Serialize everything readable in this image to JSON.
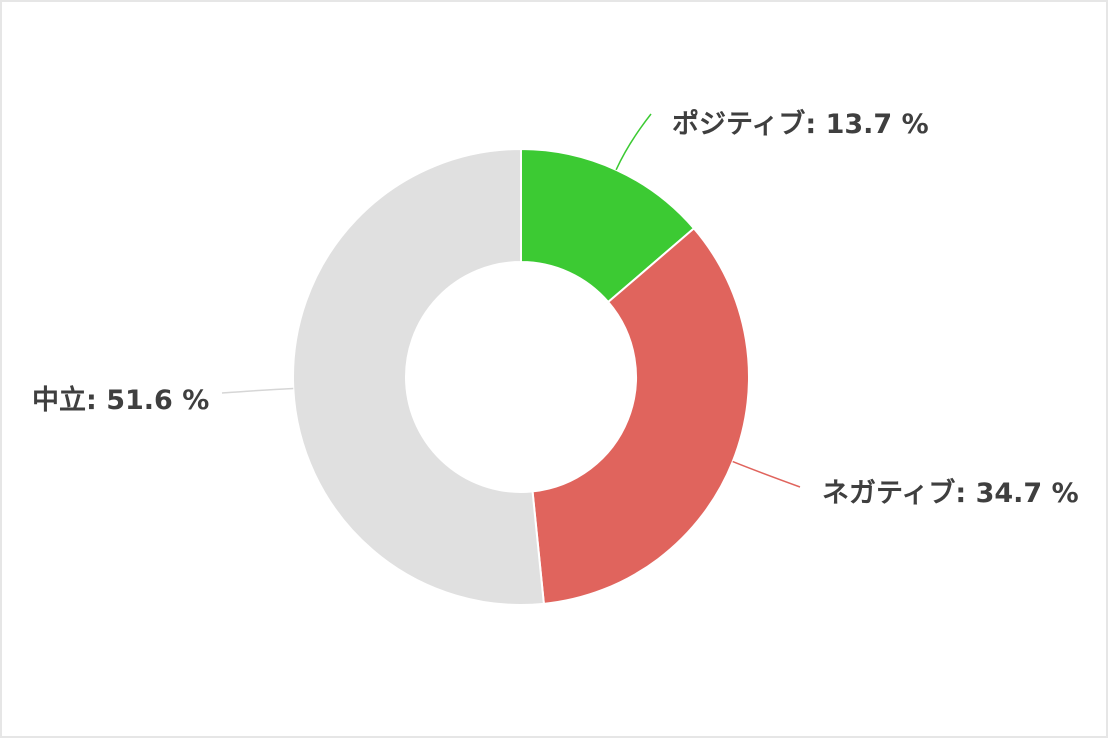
{
  "chart_data": {
    "type": "pie",
    "variant": "donut",
    "unit": "%",
    "slices": [
      {
        "label": "ポジティブ",
        "value": 13.7,
        "text": "ポジティブ: 13.7 %",
        "color": "#3cca33"
      },
      {
        "label": "ネガティブ",
        "value": 34.7,
        "text": "ネガティブ: 34.7 %",
        "color": "#e0645d"
      },
      {
        "label": "中立",
        "value": 51.6,
        "text": "中立: 51.6 %",
        "color": "#e0e0e0"
      }
    ]
  }
}
